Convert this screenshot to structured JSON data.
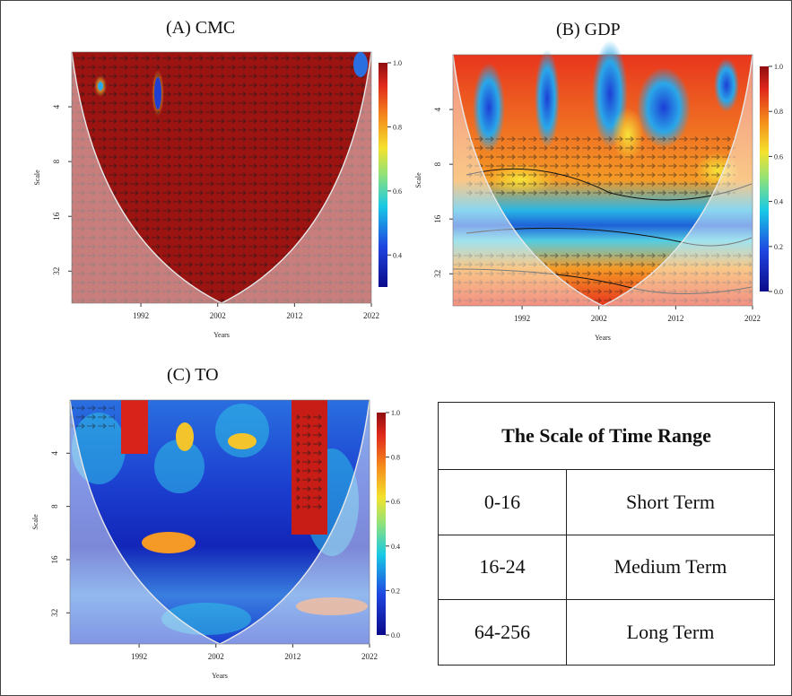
{
  "chart_data": [
    {
      "type": "heatmap",
      "title": "(A) CMC",
      "xlabel": "Years",
      "ylabel": "Scale",
      "xticks": [
        "1992",
        "2002",
        "2012",
        "2022"
      ],
      "yticks": [
        "4",
        "8",
        "16",
        "32"
      ],
      "colorbar_ticks": [
        "1.0",
        "0.8",
        "0.6",
        "0.4"
      ],
      "xlim": [
        1983,
        2022
      ],
      "ylim": [
        2,
        48
      ],
      "dominant_coherence": 0.97
    },
    {
      "type": "heatmap",
      "title": "(B) GDP",
      "xlabel": "Years",
      "ylabel": "Scale",
      "xticks": [
        "1992",
        "2002",
        "2012",
        "2022"
      ],
      "yticks": [
        "4",
        "8",
        "16",
        "32"
      ],
      "colorbar_ticks": [
        "1.0",
        "0.8",
        "0.6",
        "0.4",
        "0.2",
        "0.0"
      ],
      "xlim": [
        1983,
        2022
      ],
      "ylim": [
        2,
        48
      ]
    },
    {
      "type": "heatmap",
      "title": "(C) TO",
      "xlabel": "Years",
      "ylabel": "Scale",
      "xticks": [
        "1992",
        "2002",
        "2012",
        "2022"
      ],
      "yticks": [
        "4",
        "8",
        "16",
        "32"
      ],
      "colorbar_ticks": [
        "1.0",
        "0.8",
        "0.6",
        "0.4",
        "0.2",
        "0.0"
      ],
      "xlim": [
        1983,
        2022
      ],
      "ylim": [
        2,
        48
      ]
    }
  ],
  "table": {
    "title": "The Scale of Time Range",
    "rows": [
      {
        "range": "0-16",
        "term": "Short Term"
      },
      {
        "range": "16-24",
        "term": "Medium Term"
      },
      {
        "range": "64-256",
        "term": "Long Term"
      }
    ]
  }
}
